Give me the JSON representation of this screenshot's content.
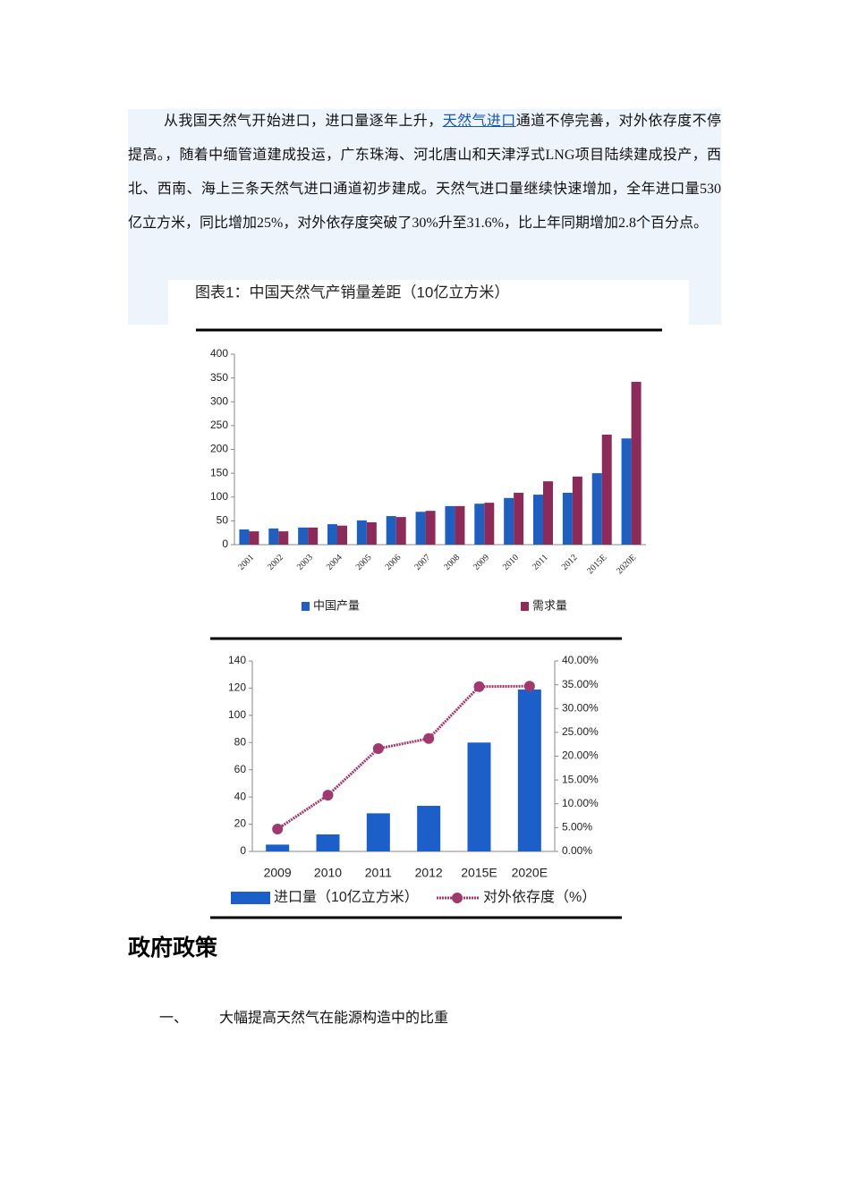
{
  "document": {
    "paragraph": {
      "before": "从我国天然气开始进口，进口量逐年上升，",
      "link": "天然气进口",
      "after": "通道不停完善，对外依存度不停提高。，随着中缅管道建成投运，广东珠海、河北唐山和天津浮式LNG项目陆续建成投产，西北、西南、海上三条天然气进口通道初步建成。天然气进口量继续快速增加，全年进口量530亿立方米，同比增加25%，对外依存度突破了30%升至31.6%，比上年同期增加2.8个百分点。"
    },
    "heading": "政府政策",
    "list": [
      {
        "marker": "一、",
        "text": "大幅提高天然气在能源构造中的比重"
      }
    ]
  },
  "chart_data": [
    {
      "type": "bar",
      "title": "图表1：中国天然气产销量差距（10亿立方米）",
      "categories": [
        "2001",
        "2002",
        "2003",
        "2004",
        "2005",
        "2006",
        "2007",
        "2008",
        "2009",
        "2010",
        "2011",
        "2012",
        "2015E",
        "2020E"
      ],
      "series": [
        {
          "name": "中国产量",
          "color": "#1f5fbf",
          "values": [
            32,
            34,
            36,
            43,
            51,
            60,
            69,
            81,
            86,
            98,
            105,
            109,
            150,
            223
          ]
        },
        {
          "name": "需求量",
          "color": "#8c2a59",
          "values": [
            28,
            28,
            36,
            40,
            47,
            58,
            71,
            81,
            88,
            109,
            133,
            143,
            231,
            342
          ]
        }
      ],
      "ylim": [
        0,
        400
      ],
      "yticks": [
        0,
        50,
        100,
        150,
        200,
        250,
        300,
        350,
        400
      ],
      "grid": false
    },
    {
      "type": "bar",
      "categories": [
        "2009",
        "2010",
        "2011",
        "2012",
        "2015E",
        "2020E"
      ],
      "series": [
        {
          "name": "进口量（10亿立方米）",
          "type": "bar",
          "color": "#1c5fc8",
          "values": [
            5,
            12.5,
            28,
            33.5,
            80,
            119
          ]
        },
        {
          "name": "对外依存度（%）",
          "type": "line",
          "axis": "y2",
          "color": "#a03a6e",
          "values": [
            4.7,
            11.8,
            21.6,
            23.7,
            34.6,
            34.7
          ]
        }
      ],
      "ylim": [
        0,
        140
      ],
      "yticks": [
        0,
        20,
        40,
        60,
        80,
        100,
        120,
        140
      ],
      "y2lim": [
        0,
        40
      ],
      "y2ticks": [
        {
          "value": 0,
          "label": "0.00%"
        },
        {
          "value": 5,
          "label": "5.00%"
        },
        {
          "value": 10,
          "label": "10.00%"
        },
        {
          "value": 15,
          "label": "15.00%"
        },
        {
          "value": 20,
          "label": "20.00%"
        },
        {
          "value": 25,
          "label": "25.00%"
        },
        {
          "value": 30,
          "label": "30.00%"
        },
        {
          "value": 35,
          "label": "35.00%"
        },
        {
          "value": 40,
          "label": "40.00%"
        }
      ],
      "grid": false
    }
  ]
}
